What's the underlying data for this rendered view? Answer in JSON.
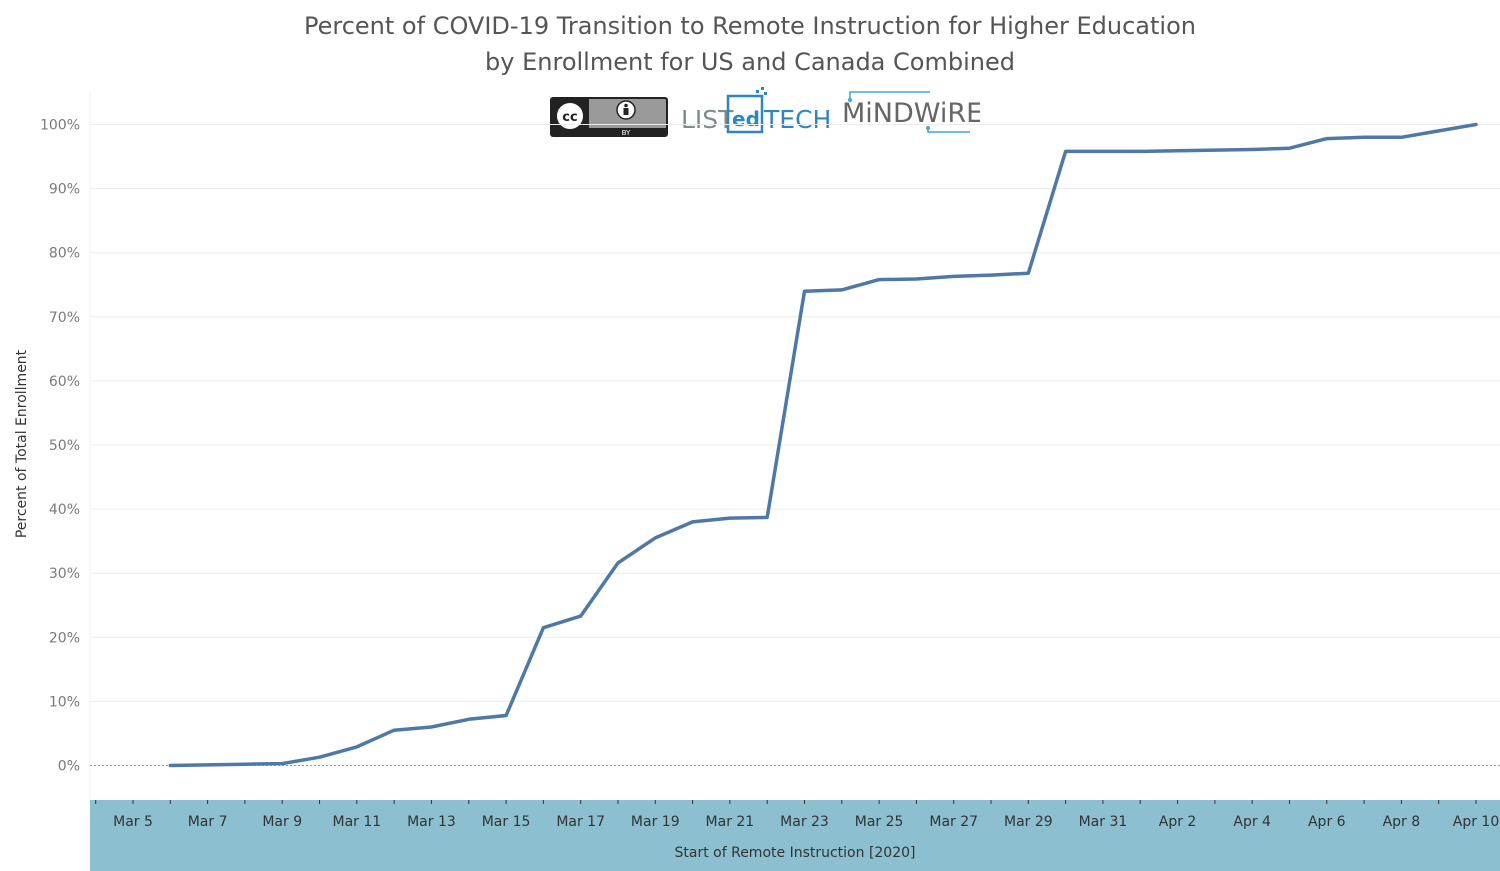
{
  "title_lines": [
    "Percent of COVID-19 Transition to Remote Instruction for Higher Education",
    "by Enrollment for US and Canada Combined"
  ],
  "logos": {
    "cc": {
      "label": "cc",
      "by": "BY"
    },
    "listedtech": {
      "part1": "LIST",
      "part2": "ed",
      "part3": "TECH"
    },
    "mindwires": {
      "text": "MiNDWiRES"
    }
  },
  "colors": {
    "line": "#4e79a7",
    "axis_band": "#8cc0d0",
    "grid": "#ececec",
    "zero_line": "#9a9a9a",
    "title": "#555555",
    "cc_badge": "#333333",
    "listedtech_blue": "#2e86c1",
    "listedtech_gray": "#7f8c8d",
    "mindwires_gray": "#666666",
    "mindwires_blue": "#3ea6dd"
  },
  "chart_data": {
    "type": "line",
    "title": "Percent of COVID-19 Transition to Remote Instruction for Higher Education by Enrollment for US and Canada Combined",
    "xlabel": "Start of Remote Instruction [2020]",
    "ylabel": "Percent of Total Enrollment",
    "x_range": [
      "2020-03-04",
      "2020-04-10"
    ],
    "ylim": [
      -5,
      102
    ],
    "y_ticks": [
      0,
      10,
      20,
      30,
      40,
      50,
      60,
      70,
      80,
      90,
      100
    ],
    "y_tick_labels": [
      "0%",
      "10%",
      "20%",
      "30%",
      "40%",
      "50%",
      "60%",
      "70%",
      "80%",
      "90%",
      "100%"
    ],
    "x_ticks": [
      "2020-03-05",
      "2020-03-07",
      "2020-03-09",
      "2020-03-11",
      "2020-03-13",
      "2020-03-15",
      "2020-03-17",
      "2020-03-19",
      "2020-03-21",
      "2020-03-23",
      "2020-03-25",
      "2020-03-27",
      "2020-03-29",
      "2020-03-31",
      "2020-04-02",
      "2020-04-04",
      "2020-04-06",
      "2020-04-08",
      "2020-04-10"
    ],
    "x_tick_labels": [
      "Mar 5",
      "Mar 7",
      "Mar 9",
      "Mar 11",
      "Mar 13",
      "Mar 15",
      "Mar 17",
      "Mar 19",
      "Mar 21",
      "Mar 23",
      "Mar 25",
      "Mar 27",
      "Mar 29",
      "Mar 31",
      "Apr 2",
      "Apr 4",
      "Apr 6",
      "Apr 8",
      "Apr 10"
    ],
    "grid": true,
    "series": [
      {
        "x": [
          "2020-03-06",
          "2020-03-07",
          "2020-03-08",
          "2020-03-09",
          "2020-03-10",
          "2020-03-11",
          "2020-03-12",
          "2020-03-13",
          "2020-03-14",
          "2020-03-15",
          "2020-03-16",
          "2020-03-17",
          "2020-03-18",
          "2020-03-19",
          "2020-03-20",
          "2020-03-21",
          "2020-03-22",
          "2020-03-23",
          "2020-03-24",
          "2020-03-25",
          "2020-03-26",
          "2020-03-27",
          "2020-03-28",
          "2020-03-29",
          "2020-03-30",
          "2020-03-31",
          "2020-04-01",
          "2020-04-02",
          "2020-04-03",
          "2020-04-04",
          "2020-04-05",
          "2020-04-06",
          "2020-04-07",
          "2020-04-08",
          "2020-04-09",
          "2020-04-10"
        ],
        "values": [
          0.0,
          0.1,
          0.2,
          0.3,
          1.3,
          2.9,
          5.5,
          6.0,
          7.2,
          7.8,
          21.5,
          23.3,
          31.6,
          35.5,
          38.0,
          38.6,
          38.7,
          74.0,
          74.2,
          75.8,
          75.9,
          76.3,
          76.5,
          76.8,
          95.8,
          95.8,
          95.8,
          95.9,
          96.0,
          96.1,
          96.3,
          97.8,
          98.0,
          98.0,
          99.0,
          100.0
        ]
      }
    ]
  }
}
